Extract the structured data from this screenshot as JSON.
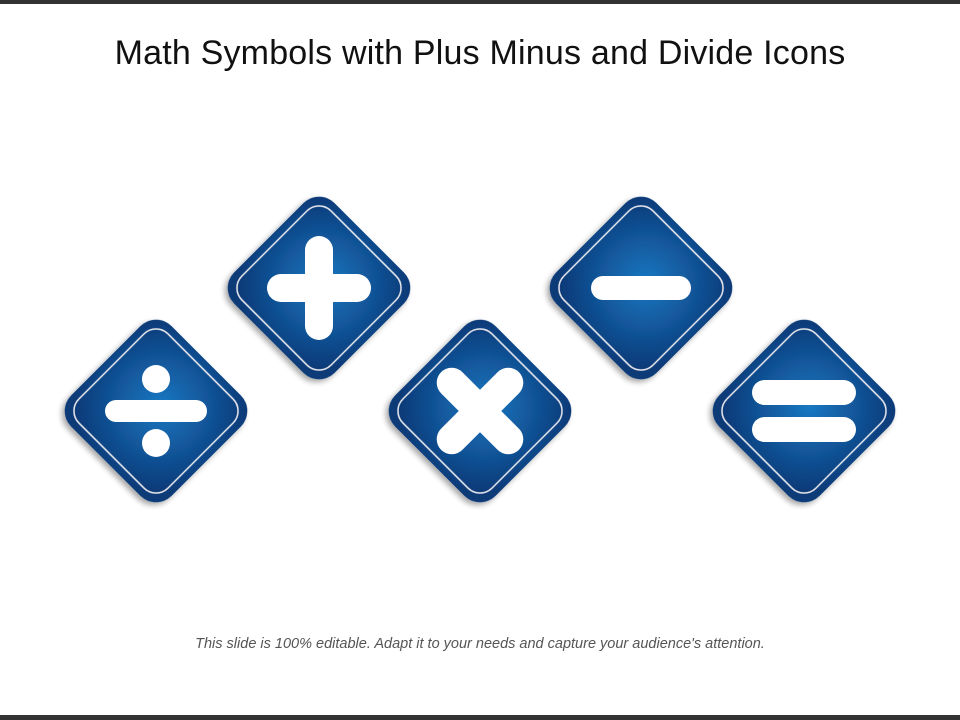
{
  "slide": {
    "title": "Math Symbols with Plus Minus and Divide Icons",
    "footer": "This slide is 100% editable. Adapt it to your needs and capture your audience's attention."
  },
  "icons": [
    {
      "name": "divide-icon"
    },
    {
      "name": "plus-icon"
    },
    {
      "name": "multiply-icon"
    },
    {
      "name": "minus-icon"
    },
    {
      "name": "equals-icon"
    }
  ],
  "colors": {
    "tile_light": "#1a78c2",
    "tile_dark": "#0b3a78",
    "symbol": "#ffffff",
    "text": "#111111",
    "footer_text": "#555555",
    "frame_bar": "#333333"
  }
}
